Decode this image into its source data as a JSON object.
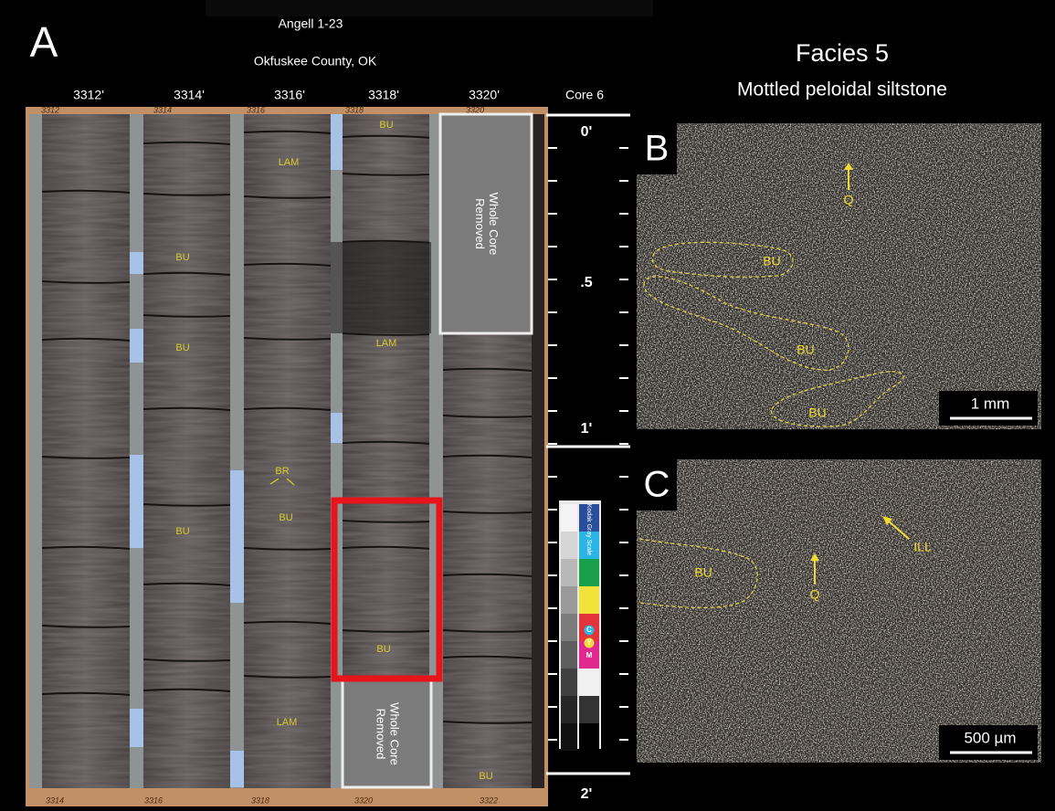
{
  "panel_a": {
    "letter": "A",
    "well": "Angell 1-23",
    "location": "Okfuskee County, OK",
    "depths": [
      "3312'",
      "3314'",
      "3316'",
      "3318'",
      "3320'"
    ],
    "core": "Core 6",
    "scale": [
      "0'",
      ".5",
      "1'",
      "2'"
    ],
    "top_tags": [
      "3312",
      "3314",
      "3316",
      "3318",
      "3320"
    ],
    "bottom_tags": [
      "3314",
      "3316",
      "3318",
      "3320",
      "3322"
    ],
    "annotations": [
      "BU",
      "LAM",
      "BU",
      "BU",
      "LAM",
      "BR",
      "BU",
      "BU",
      "BU",
      "LAM",
      "BU"
    ],
    "removed": [
      [
        "Whole Core",
        "Removed"
      ],
      [
        "Whole Core",
        "Removed"
      ]
    ],
    "color_card": {
      "title": "Kodak Gray Scale",
      "letters": [
        "C",
        "Y",
        "M"
      ]
    }
  },
  "facies": {
    "title": "Facies 5",
    "subtitle": "Mottled peloidal siltstone"
  },
  "panel_b": {
    "letter": "B",
    "labels": [
      "Q",
      "BU",
      "BU",
      "BU"
    ],
    "scale_bar": "1 mm"
  },
  "panel_c": {
    "letter": "C",
    "labels": [
      "ILL",
      "Q",
      "BU"
    ],
    "scale_bar": "500 µm"
  }
}
